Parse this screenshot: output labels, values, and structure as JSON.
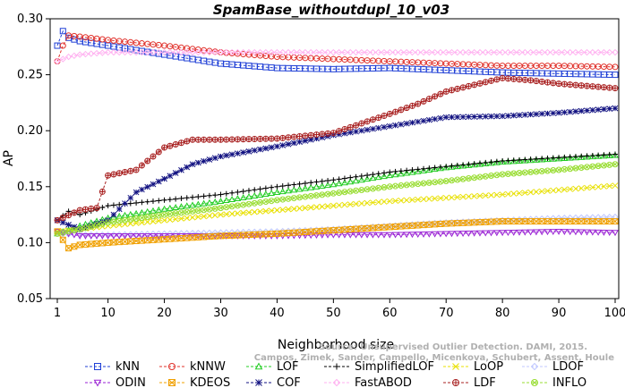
{
  "chart_data": {
    "type": "line",
    "title": "SpamBase_withoutdupl_10_v03",
    "xlabel": "Neighborhood size",
    "ylabel": "AP",
    "xlim": [
      1,
      100
    ],
    "ylim": [
      0.05,
      0.3
    ],
    "x_ticks": [
      1,
      10,
      20,
      30,
      40,
      50,
      60,
      70,
      80,
      90,
      100
    ],
    "y_ticks": [
      "0.05",
      "0.10",
      "0.15",
      "0.20",
      "0.25",
      "0.30"
    ],
    "grid": false,
    "legend_position": "bottom",
    "watermark": [
      "Source: Unsupervised Outlier Detection. DAMI, 2015.",
      "Campos, Zimek, Sander, Campello, Micenkova, Schubert, Assent, Houle"
    ],
    "series": [
      {
        "name": "kNN",
        "color": "#1f3fd6",
        "marker": "square",
        "anchors": [
          [
            1,
            0.276
          ],
          [
            2,
            0.289
          ],
          [
            3,
            0.283
          ],
          [
            5,
            0.28
          ],
          [
            10,
            0.276
          ],
          [
            20,
            0.268
          ],
          [
            30,
            0.26
          ],
          [
            40,
            0.256
          ],
          [
            50,
            0.255
          ],
          [
            60,
            0.256
          ],
          [
            70,
            0.254
          ],
          [
            80,
            0.252
          ],
          [
            90,
            0.251
          ],
          [
            100,
            0.25
          ]
        ]
      },
      {
        "name": "kNNW",
        "color": "#e0302a",
        "marker": "circle",
        "anchors": [
          [
            1,
            0.262
          ],
          [
            2,
            0.276
          ],
          [
            3,
            0.285
          ],
          [
            5,
            0.284
          ],
          [
            10,
            0.281
          ],
          [
            20,
            0.276
          ],
          [
            30,
            0.27
          ],
          [
            40,
            0.266
          ],
          [
            50,
            0.264
          ],
          [
            60,
            0.262
          ],
          [
            70,
            0.26
          ],
          [
            80,
            0.258
          ],
          [
            90,
            0.258
          ],
          [
            100,
            0.257
          ]
        ]
      },
      {
        "name": "LOF",
        "color": "#22cc22",
        "marker": "triangle-up",
        "anchors": [
          [
            1,
            0.108
          ],
          [
            5,
            0.115
          ],
          [
            10,
            0.122
          ],
          [
            20,
            0.13
          ],
          [
            30,
            0.137
          ],
          [
            40,
            0.145
          ],
          [
            50,
            0.152
          ],
          [
            60,
            0.16
          ],
          [
            70,
            0.167
          ],
          [
            80,
            0.172
          ],
          [
            90,
            0.175
          ],
          [
            100,
            0.178
          ]
        ]
      },
      {
        "name": "SimplifiedLOF",
        "color": "#000000",
        "marker": "plus",
        "anchors": [
          [
            1,
            0.12
          ],
          [
            3,
            0.128
          ],
          [
            5,
            0.125
          ],
          [
            10,
            0.133
          ],
          [
            20,
            0.138
          ],
          [
            30,
            0.143
          ],
          [
            40,
            0.15
          ],
          [
            50,
            0.156
          ],
          [
            60,
            0.163
          ],
          [
            70,
            0.168
          ],
          [
            80,
            0.173
          ],
          [
            90,
            0.176
          ],
          [
            100,
            0.179
          ]
        ]
      },
      {
        "name": "LoOP",
        "color": "#e8e000",
        "marker": "x",
        "anchors": [
          [
            1,
            0.11
          ],
          [
            5,
            0.112
          ],
          [
            10,
            0.115
          ],
          [
            20,
            0.12
          ],
          [
            30,
            0.125
          ],
          [
            40,
            0.129
          ],
          [
            50,
            0.133
          ],
          [
            60,
            0.137
          ],
          [
            70,
            0.14
          ],
          [
            80,
            0.143
          ],
          [
            90,
            0.147
          ],
          [
            100,
            0.151
          ]
        ]
      },
      {
        "name": "LDOF",
        "color": "#c0c8ff",
        "marker": "diamond",
        "anchors": [
          [
            1,
            0.108
          ],
          [
            5,
            0.107
          ],
          [
            10,
            0.107
          ],
          [
            20,
            0.108
          ],
          [
            30,
            0.109
          ],
          [
            40,
            0.11
          ],
          [
            50,
            0.112
          ],
          [
            60,
            0.115
          ],
          [
            70,
            0.118
          ],
          [
            80,
            0.12
          ],
          [
            90,
            0.122
          ],
          [
            100,
            0.123
          ]
        ]
      },
      {
        "name": "ODIN",
        "color": "#9a22d4",
        "marker": "triangle-down",
        "anchors": [
          [
            1,
            0.11
          ],
          [
            5,
            0.106
          ],
          [
            10,
            0.106
          ],
          [
            20,
            0.106
          ],
          [
            30,
            0.106
          ],
          [
            40,
            0.106
          ],
          [
            50,
            0.107
          ],
          [
            60,
            0.107
          ],
          [
            70,
            0.108
          ],
          [
            80,
            0.109
          ],
          [
            90,
            0.11
          ],
          [
            100,
            0.109
          ]
        ]
      },
      {
        "name": "KDEOS",
        "color": "#f0a000",
        "marker": "square-x",
        "anchors": [
          [
            1,
            0.11
          ],
          [
            3,
            0.095
          ],
          [
            5,
            0.098
          ],
          [
            10,
            0.1
          ],
          [
            20,
            0.103
          ],
          [
            30,
            0.106
          ],
          [
            40,
            0.108
          ],
          [
            50,
            0.111
          ],
          [
            60,
            0.114
          ],
          [
            70,
            0.117
          ],
          [
            80,
            0.119
          ],
          [
            90,
            0.119
          ],
          [
            100,
            0.119
          ]
        ]
      },
      {
        "name": "COF",
        "color": "#101080",
        "marker": "star",
        "anchors": [
          [
            1,
            0.12
          ],
          [
            5,
            0.112
          ],
          [
            10,
            0.12
          ],
          [
            15,
            0.145
          ],
          [
            20,
            0.157
          ],
          [
            25,
            0.17
          ],
          [
            30,
            0.177
          ],
          [
            40,
            0.186
          ],
          [
            50,
            0.196
          ],
          [
            60,
            0.204
          ],
          [
            70,
            0.212
          ],
          [
            80,
            0.213
          ],
          [
            90,
            0.216
          ],
          [
            100,
            0.22
          ]
        ]
      },
      {
        "name": "FastABOD",
        "color": "#ffb0f0",
        "marker": "diamond",
        "anchors": [
          [
            1,
            0.262
          ],
          [
            3,
            0.266
          ],
          [
            5,
            0.268
          ],
          [
            10,
            0.27
          ],
          [
            20,
            0.27
          ],
          [
            30,
            0.27
          ],
          [
            40,
            0.27
          ],
          [
            50,
            0.27
          ],
          [
            60,
            0.27
          ],
          [
            70,
            0.27
          ],
          [
            80,
            0.27
          ],
          [
            90,
            0.27
          ],
          [
            100,
            0.27
          ]
        ]
      },
      {
        "name": "LDF",
        "color": "#a82020",
        "marker": "circle-plus",
        "anchors": [
          [
            1,
            0.12
          ],
          [
            5,
            0.129
          ],
          [
            8,
            0.131
          ],
          [
            10,
            0.16
          ],
          [
            15,
            0.165
          ],
          [
            20,
            0.185
          ],
          [
            25,
            0.192
          ],
          [
            30,
            0.192
          ],
          [
            40,
            0.193
          ],
          [
            50,
            0.198
          ],
          [
            60,
            0.215
          ],
          [
            65,
            0.224
          ],
          [
            70,
            0.235
          ],
          [
            80,
            0.247
          ],
          [
            85,
            0.245
          ],
          [
            90,
            0.242
          ],
          [
            100,
            0.238
          ]
        ]
      },
      {
        "name": "INFLO",
        "color": "#99dd33",
        "marker": "circle-x",
        "anchors": [
          [
            1,
            0.108
          ],
          [
            5,
            0.112
          ],
          [
            10,
            0.118
          ],
          [
            20,
            0.125
          ],
          [
            30,
            0.131
          ],
          [
            40,
            0.138
          ],
          [
            50,
            0.144
          ],
          [
            60,
            0.15
          ],
          [
            70,
            0.155
          ],
          [
            80,
            0.161
          ],
          [
            90,
            0.165
          ],
          [
            100,
            0.17
          ]
        ]
      }
    ]
  }
}
